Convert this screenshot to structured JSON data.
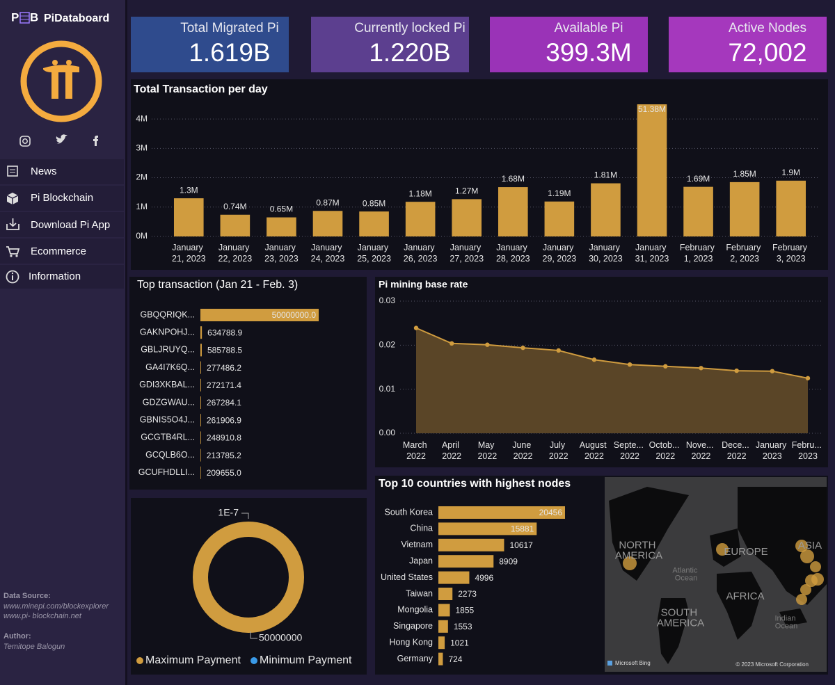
{
  "sidebar": {
    "brand": "PiDataboard",
    "nav": [
      "News",
      "Pi Blockchain",
      "Download Pi App",
      "Ecommerce",
      "Information"
    ],
    "source_heading": "Data Source:",
    "sources": [
      "www.minepi.com/blockexplorer",
      "www.pi- blockchain.net"
    ],
    "author_heading": "Author:",
    "author": "Temitope Balogun"
  },
  "cards": [
    {
      "label": "Total Migrated Pi",
      "value": "1.619B",
      "color": "#2f4b8d"
    },
    {
      "label": "Currently locked Pi",
      "value": "1.220B",
      "color": "#5c3f8f"
    },
    {
      "label": "Available Pi",
      "value": "399.3M",
      "color": "#9a33b7"
    },
    {
      "label": "Active Nodes",
      "value": "72,002",
      "color": "#a538bd"
    }
  ],
  "chart_data": [
    {
      "type": "bar",
      "title": "Total Transaction per day",
      "categories": [
        "January 21, 2023",
        "January 22, 2023",
        "January 23, 2023",
        "January 24, 2023",
        "January 25, 2023",
        "January 26, 2023",
        "January 27, 2023",
        "January 28, 2023",
        "January 29, 2023",
        "January 30, 2023",
        "January 31, 2023",
        "February 1, 2023",
        "February 2, 2023",
        "February 3, 2023"
      ],
      "values": [
        1.3,
        0.74,
        0.65,
        0.87,
        0.85,
        1.18,
        1.27,
        1.68,
        1.19,
        1.81,
        51.38,
        1.69,
        1.85,
        1.9
      ],
      "value_labels": [
        "1.3M",
        "0.74M",
        "0.65M",
        "0.87M",
        "0.85M",
        "1.18M",
        "1.27M",
        "1.68M",
        "1.19M",
        "1.81M",
        "51.38M",
        "1.69M",
        "1.85M",
        "1.9M"
      ],
      "color": "#d09c3f",
      "ylim": [
        0,
        4.5
      ],
      "yticks": [
        {
          "value": 0,
          "label": "0M"
        },
        {
          "value": 1,
          "label": "1M"
        },
        {
          "value": 2,
          "label": "2M"
        },
        {
          "value": 3,
          "label": "3M"
        },
        {
          "value": 4,
          "label": "4M"
        }
      ],
      "grid": true
    },
    {
      "type": "hbar",
      "title": "Top transaction (Jan 21 - Feb. 3)",
      "categories": [
        "GBQQRIQK...",
        "GAKNPOHJ...",
        "GBLJRUYQ...",
        "GA4I7K6Q...",
        "GDI3XKBAL...",
        "GDZGWAU...",
        "GBNIS5O4J...",
        "GCGTB4RL...",
        "GCQLB6O...",
        "GCUFHDLLI..."
      ],
      "values": [
        50000000,
        634788.9,
        585788.5,
        277486.2,
        272171.4,
        267284.1,
        261906.9,
        248910.8,
        213785.2,
        209655.0
      ],
      "value_labels": [
        "50000000.0",
        "634788.9",
        "585788.5",
        "277486.2",
        "272171.4",
        "267284.1",
        "261906.9",
        "248910.8",
        "213785.2",
        "209655.0"
      ],
      "color": "#d09c3f"
    },
    {
      "type": "area",
      "title": "Pi mining base rate",
      "categories": [
        "March 2022",
        "April 2022",
        "May 2022",
        "June 2022",
        "July 2022",
        "August 2022",
        "Septe... 2022",
        "Octob... 2022",
        "Nove... 2022",
        "Dece... 2022",
        "January 2023",
        "Febru... 2023"
      ],
      "values": [
        0.0239,
        0.0204,
        0.0201,
        0.0194,
        0.0188,
        0.0167,
        0.0156,
        0.0152,
        0.0148,
        0.0142,
        0.0141,
        0.0125
      ],
      "color": "#d09c3f",
      "fill": "#5a4527",
      "ylim": [
        0,
        0.03
      ],
      "yticks": [
        {
          "value": 0,
          "label": "0.00"
        },
        0.01,
        0.02,
        0.03
      ],
      "grid": true
    },
    {
      "type": "donut",
      "categories": [
        "Maximum Payment",
        "Minimum Payment"
      ],
      "values": [
        50000000,
        1e-07
      ],
      "value_labels": [
        "50000000",
        "1E-7"
      ],
      "colors": [
        "#d09c3f",
        "#3a9ae8"
      ]
    },
    {
      "type": "hbar",
      "title": "Top 10 countries with highest nodes",
      "categories": [
        "South Korea",
        "China",
        "Vietnam",
        "Japan",
        "United States",
        "Taiwan",
        "Mongolia",
        "Singapore",
        "Hong Kong",
        "Germany"
      ],
      "values": [
        20456,
        15881,
        10617,
        8909,
        4996,
        2273,
        1855,
        1553,
        1021,
        724
      ],
      "color": "#d09c3f"
    }
  ],
  "map": {
    "labels": [
      "NORTH AMERICA",
      "EUROPE",
      "ASIA",
      "AFRICA",
      "SOUTH AMERICA",
      "Atlantic Ocean",
      "Indian Ocean"
    ],
    "provider": "Microsoft Bing",
    "copyright": "© 2023 Microsoft Corporation"
  }
}
